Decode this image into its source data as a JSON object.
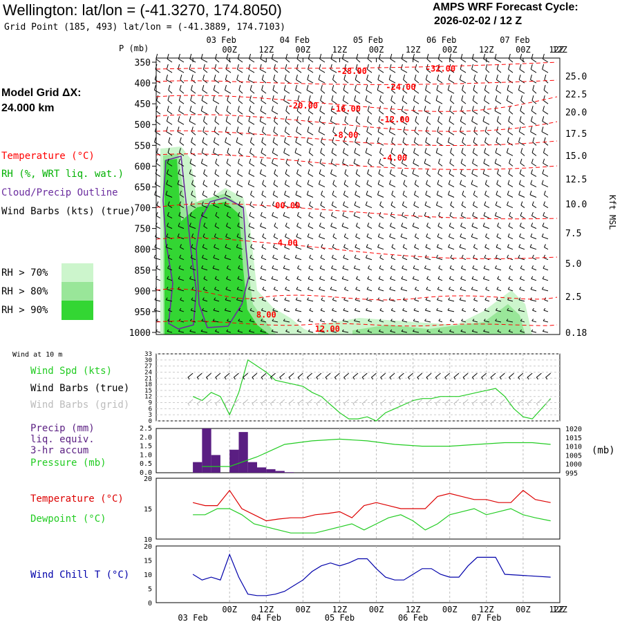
{
  "header": {
    "title": "Wellington:  lat/lon = (-41.3270, 174.8050)",
    "grid_point": "Grid Point (185, 493) lat/lon = (-41.3889, 174.7103)",
    "cycle_line1": "AMPS WRF Forecast Cycle:",
    "cycle_line2": "2026-02-02 / 12  Z"
  },
  "model_grid": {
    "line1": "Model Grid ΔX:",
    "line2": " 24.000 km"
  },
  "legend": {
    "temperature": "Temperature (°C)",
    "rh": "RH (%, WRT liq. wat.)",
    "cloud": "Cloud/Precip Outline",
    "wind": "Wind Barbs (kts) (true)",
    "rh_levels": [
      {
        "label": "RH > 70%",
        "color": "#ccf5cc"
      },
      {
        "label": "RH > 80%",
        "color": "#99e699"
      },
      {
        "label": "RH > 90%",
        "color": "#33d633"
      }
    ]
  },
  "colors": {
    "temperature": "#ff0000",
    "rh_text": "#00b000",
    "cloud": "#6a2c9e",
    "wind_speed": "#22cc22",
    "precip": "#5a1e82",
    "pressure": "#22cc22",
    "dewpoint": "#22cc22",
    "temp_line": "#dd0000",
    "windchill": "#0000aa",
    "grid_barb": "#bbbbbb"
  },
  "time_axis": {
    "top_days": [
      "03 Feb",
      "04 Feb",
      "05 Feb",
      "06 Feb",
      "07 Feb"
    ],
    "hours": [
      "00Z",
      "12Z",
      "00Z",
      "12Z",
      "00Z",
      "12Z",
      "00Z",
      "12Z",
      "00Z",
      "12Z"
    ],
    "bottom_days": [
      "03 Feb",
      "04 Feb",
      "05 Feb",
      "06 Feb",
      "07 Feb"
    ]
  },
  "chart_data": [
    {
      "type": "heatmap",
      "ylabel_left": "P (mb)",
      "ylabel_right": "Kft MSL",
      "pressure_levels": [
        350,
        400,
        450,
        500,
        550,
        600,
        650,
        700,
        750,
        800,
        850,
        900,
        950,
        1000
      ],
      "height_labels": [
        "25.0",
        "22.5",
        "20.0",
        "17.5",
        "15.0",
        "12.5",
        "10.0",
        "7.5",
        "5.0",
        "2.5",
        "0.18"
      ],
      "isotherm_labels": [
        {
          "label": "-28.00",
          "pressure": 372,
          "hour": 52
        },
        {
          "label": "-32.00",
          "pressure": 366,
          "hour": 81
        },
        {
          "label": "-24.00",
          "pressure": 410,
          "hour": 68
        },
        {
          "label": "-20.00",
          "pressure": 455,
          "hour": 36
        },
        {
          "label": "-16.00",
          "pressure": 462,
          "hour": 50
        },
        {
          "label": "-12.00",
          "pressure": 488,
          "hour": 66
        },
        {
          "label": "-8.00",
          "pressure": 525,
          "hour": 50
        },
        {
          "label": "-4.00",
          "pressure": 580,
          "hour": 66
        },
        {
          "label": "00.00",
          "pressure": 695,
          "hour": 31
        },
        {
          "label": "4.00",
          "pressure": 785,
          "hour": 31
        },
        {
          "label": "8.00",
          "pressure": 958,
          "hour": 24
        },
        {
          "label": "12.00",
          "pressure": 992,
          "hour": 44
        }
      ]
    },
    {
      "type": "line",
      "title": "Wind at 10 m",
      "series_labels": [
        "Wind Spd (kts)",
        "Wind Barbs (true)",
        "Wind Barbs (grid)"
      ],
      "y_ticks": [
        0,
        3,
        6,
        9,
        12,
        15,
        18,
        21,
        24,
        27,
        30,
        33
      ],
      "ylim": [
        0,
        33
      ],
      "x_hours": [
        0,
        3,
        6,
        9,
        12,
        15,
        18,
        21,
        24,
        27,
        30,
        33,
        36,
        39,
        42,
        45,
        48,
        51,
        54,
        57,
        60,
        63,
        66,
        69,
        72,
        75,
        78,
        81,
        84,
        87,
        90,
        93,
        96,
        99,
        102,
        105,
        108,
        111,
        114,
        117
      ],
      "values": [
        12,
        10,
        14,
        12,
        3,
        14,
        30,
        27,
        24,
        20,
        19,
        18,
        17,
        14,
        12,
        8,
        4,
        1,
        1,
        2,
        0,
        4,
        6,
        8,
        10,
        11,
        11,
        12,
        12,
        12,
        13,
        14,
        15,
        16,
        12,
        6,
        2,
        1,
        6,
        11
      ]
    },
    {
      "type": "bar",
      "series_labels": [
        "Precip (mm)",
        "liq. equiv.",
        "3-hr accum",
        "Pressure (mb)"
      ],
      "precip_ticks": [
        "0.0",
        "0.5",
        "1.0",
        "1.5",
        "2.0",
        "2.5"
      ],
      "pressure_ticks": [
        "995",
        "1000",
        "1005",
        "1010",
        "1015",
        "1020"
      ],
      "pressure_unit": "(mb)",
      "precip_hours": [
        3,
        6,
        9,
        15,
        18,
        21,
        24,
        27,
        30,
        33
      ],
      "precip_values": [
        0.6,
        2.5,
        1.0,
        1.3,
        2.3,
        0.6,
        0.3,
        0.2,
        0.1,
        0.03
      ],
      "pressure_hours": [
        3,
        12,
        21,
        30,
        39,
        48,
        57,
        66,
        75,
        84,
        93,
        102,
        111,
        117
      ],
      "pressure_values": [
        998.5,
        998.5,
        1004,
        1011,
        1013,
        1014,
        1013,
        1011,
        1010,
        1010,
        1011,
        1012,
        1012,
        1011
      ]
    },
    {
      "type": "line",
      "series": [
        {
          "name": "Temperature (°C)",
          "values": [
            16,
            15.5,
            15.5,
            18,
            15,
            14,
            13,
            13.3,
            13.5,
            13.5,
            14,
            14.2,
            14.5,
            13.5,
            15.5,
            16,
            15.5,
            15,
            15,
            15,
            17,
            17.5,
            17,
            16.5,
            16.5,
            16,
            16,
            18,
            16.5,
            16
          ]
        },
        {
          "name": "Dewpoint (°C)",
          "values": [
            14,
            14,
            15,
            15,
            14,
            12.5,
            12,
            11.5,
            11,
            11,
            11,
            11.5,
            12,
            12.5,
            11.5,
            12.5,
            13.5,
            14,
            13,
            11.5,
            12.5,
            14,
            14.5,
            15,
            14,
            14.5,
            15,
            14,
            13.5,
            13
          ]
        }
      ],
      "x_hours": [
        0,
        4,
        8,
        12,
        16,
        20,
        24,
        28,
        32,
        36,
        40,
        44,
        48,
        52,
        56,
        60,
        64,
        68,
        72,
        76,
        80,
        84,
        88,
        92,
        96,
        100,
        104,
        108,
        112,
        117
      ],
      "ylim": [
        10,
        20
      ],
      "y_ticks": [
        "10",
        "15",
        "20"
      ]
    },
    {
      "type": "line",
      "series": [
        {
          "name": "Wind Chill T (°C)",
          "values": [
            10,
            8,
            9,
            8,
            17,
            9,
            3,
            2.5,
            2.5,
            3,
            4,
            6,
            8,
            11,
            13,
            14,
            13,
            14,
            15.5,
            15.5,
            12,
            9,
            8,
            8,
            10,
            12,
            12,
            10,
            9,
            9,
            13,
            16,
            16,
            16,
            10,
            9
          ]
        }
      ],
      "x_hours": [
        0,
        3,
        6,
        9,
        12,
        15,
        18,
        21,
        24,
        27,
        30,
        33,
        36,
        39,
        42,
        45,
        48,
        51,
        54,
        57,
        60,
        63,
        66,
        69,
        72,
        75,
        78,
        81,
        84,
        87,
        90,
        93,
        96,
        99,
        102,
        117
      ],
      "ylim": [
        0,
        20
      ],
      "y_ticks": [
        "0",
        "5",
        "10",
        "15",
        "20"
      ]
    }
  ]
}
